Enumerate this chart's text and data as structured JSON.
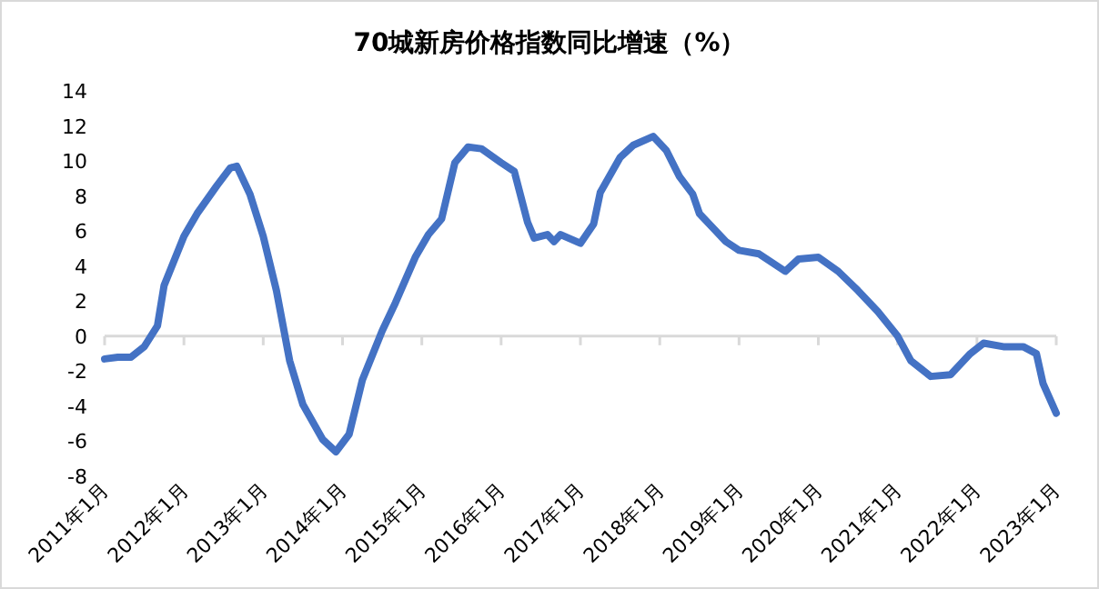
{
  "chart_data": {
    "type": "line",
    "title": "70城新房价格指数同比增速（%）",
    "x": [
      "2011-01",
      "2011-03",
      "2011-05",
      "2011-07",
      "2011-09",
      "2011-10",
      "2012-01",
      "2012-03",
      "2012-06",
      "2012-08",
      "2012-09",
      "2012-11",
      "2013-01",
      "2013-03",
      "2013-05",
      "2013-07",
      "2013-10",
      "2013-12",
      "2014-02",
      "2014-04",
      "2014-07",
      "2014-09",
      "2014-12",
      "2015-02",
      "2015-04",
      "2015-06",
      "2015-08",
      "2015-10",
      "2016-01",
      "2016-03",
      "2016-05",
      "2016-06",
      "2016-08",
      "2016-09",
      "2016-10",
      "2017-01",
      "2017-03",
      "2017-04",
      "2017-07",
      "2017-09",
      "2017-12",
      "2018-02",
      "2018-04",
      "2018-06",
      "2018-07",
      "2018-11",
      "2019-01",
      "2019-04",
      "2019-08",
      "2019-10",
      "2020-01",
      "2020-04",
      "2020-07",
      "2020-10",
      "2021-01",
      "2021-03",
      "2021-06",
      "2021-09",
      "2021-12",
      "2022-02",
      "2022-05",
      "2022-08",
      "2022-10",
      "2022-11",
      "2023-01"
    ],
    "values": [
      -1.3,
      -1.2,
      -1.2,
      -0.6,
      0.6,
      2.9,
      5.7,
      7.0,
      8.6,
      9.6,
      9.7,
      8.1,
      5.7,
      2.6,
      -1.4,
      -3.9,
      -5.9,
      -6.6,
      -5.6,
      -2.5,
      0.3,
      1.9,
      4.5,
      5.8,
      6.7,
      9.9,
      10.8,
      10.7,
      9.9,
      9.4,
      6.5,
      5.6,
      5.8,
      5.4,
      5.8,
      5.3,
      6.4,
      8.2,
      10.2,
      10.9,
      11.4,
      10.6,
      9.1,
      8.1,
      7.0,
      5.4,
      4.9,
      4.7,
      3.7,
      4.4,
      4.5,
      3.7,
      2.6,
      1.4,
      0.0,
      -1.4,
      -2.3,
      -2.2,
      -1.0,
      -0.4,
      -0.6,
      -0.6,
      -1.0,
      -2.7,
      -4.4
    ],
    "color": "#4472c4",
    "xlim": [
      "2011-01",
      "2023-01"
    ],
    "xticks": [
      {
        "value": "2011-01",
        "label": "2011年1月"
      },
      {
        "value": "2012-01",
        "label": "2012年1月"
      },
      {
        "value": "2013-01",
        "label": "2013年1月"
      },
      {
        "value": "2014-01",
        "label": "2014年1月"
      },
      {
        "value": "2015-01",
        "label": "2015年1月"
      },
      {
        "value": "2016-01",
        "label": "2016年1月"
      },
      {
        "value": "2017-01",
        "label": "2017年1月"
      },
      {
        "value": "2018-01",
        "label": "2018年1月"
      },
      {
        "value": "2019-01",
        "label": "2019年1月"
      },
      {
        "value": "2020-01",
        "label": "2020年1月"
      },
      {
        "value": "2021-01",
        "label": "2021年1月"
      },
      {
        "value": "2022-01",
        "label": "2022年1月"
      },
      {
        "value": "2023-01",
        "label": "2023年1月"
      }
    ],
    "ylim": [
      -8,
      14
    ],
    "yticks": [
      -8,
      -6,
      -4,
      -2,
      0,
      2,
      4,
      6,
      8,
      10,
      12,
      14
    ]
  }
}
